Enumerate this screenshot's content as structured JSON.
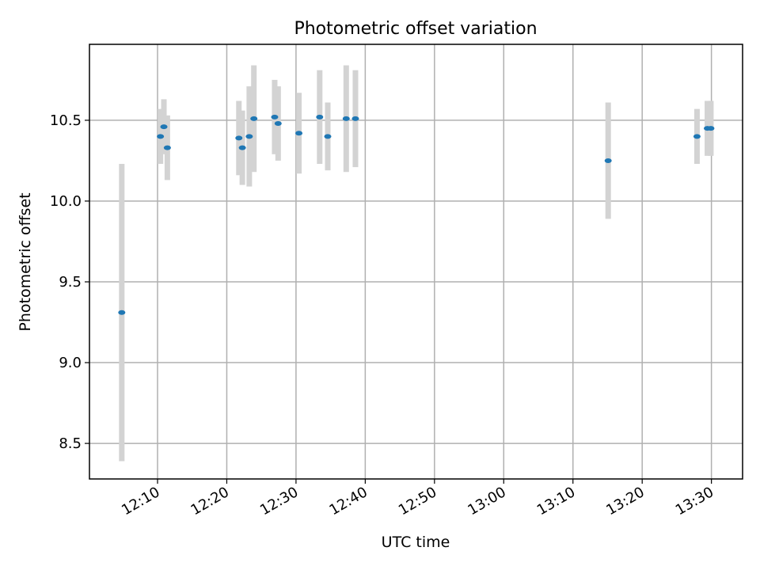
{
  "chart_data": {
    "type": "scatter",
    "title": "Photometric offset variation",
    "xlabel": "UTC time",
    "ylabel": "Photometric offset",
    "x_unit": "minutes",
    "x_ticks": [
      "12:10",
      "12:20",
      "12:30",
      "12:40",
      "12:50",
      "13:00",
      "13:10",
      "13:20",
      "13:30"
    ],
    "y_ticks": [
      "8.5",
      "9.0",
      "9.5",
      "10.0",
      "10.5"
    ],
    "xlim": [
      "12:00:10",
      "13:34:30"
    ],
    "ylim": [
      8.28,
      10.97
    ],
    "grid": true,
    "marker_color": "#1f77b4",
    "errorbar_color": "#d3d3d3",
    "points": [
      {
        "x": "12:04:50",
        "y": 9.31,
        "err": 0.92
      },
      {
        "x": "12:10:25",
        "y": 10.4,
        "err": 0.17
      },
      {
        "x": "12:10:55",
        "y": 10.46,
        "err": 0.17
      },
      {
        "x": "12:11:25",
        "y": 10.33,
        "err": 0.2
      },
      {
        "x": "12:21:45",
        "y": 10.39,
        "err": 0.23
      },
      {
        "x": "12:22:15",
        "y": 10.33,
        "err": 0.23
      },
      {
        "x": "12:23:15",
        "y": 10.4,
        "err": 0.31
      },
      {
        "x": "12:23:55",
        "y": 10.51,
        "err": 0.33
      },
      {
        "x": "12:26:55",
        "y": 10.52,
        "err": 0.23
      },
      {
        "x": "12:27:25",
        "y": 10.48,
        "err": 0.23
      },
      {
        "x": "12:30:25",
        "y": 10.42,
        "err": 0.25
      },
      {
        "x": "12:33:25",
        "y": 10.52,
        "err": 0.29
      },
      {
        "x": "12:34:35",
        "y": 10.4,
        "err": 0.21
      },
      {
        "x": "12:37:15",
        "y": 10.51,
        "err": 0.33
      },
      {
        "x": "12:38:35",
        "y": 10.51,
        "err": 0.3
      },
      {
        "x": "13:15:05",
        "y": 10.25,
        "err": 0.36
      },
      {
        "x": "13:27:55",
        "y": 10.4,
        "err": 0.17
      },
      {
        "x": "13:29:25",
        "y": 10.45,
        "err": 0.17
      },
      {
        "x": "13:29:55",
        "y": 10.45,
        "err": 0.17
      }
    ]
  }
}
